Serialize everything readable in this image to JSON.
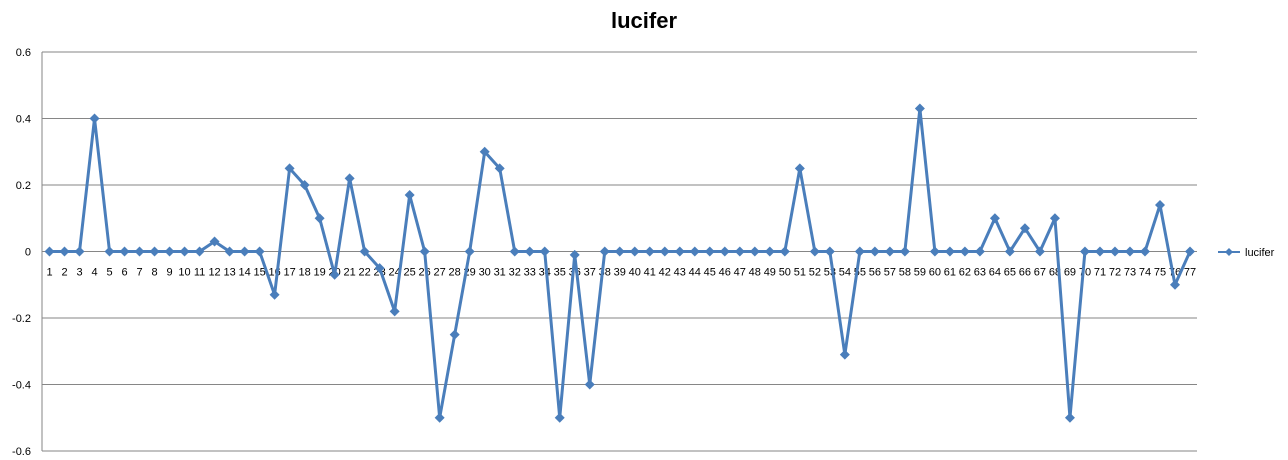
{
  "chart_data": {
    "type": "line",
    "title": "lucifer",
    "xlabel": "",
    "ylabel": "",
    "ylim": [
      -0.6,
      0.6
    ],
    "yticks": [
      "0.6",
      "0.4",
      "0.2",
      "0",
      "-0.2",
      "-0.4",
      "-0.6"
    ],
    "ytick_values": [
      0.6,
      0.4,
      0.2,
      0,
      -0.2,
      -0.4,
      -0.6
    ],
    "grid": true,
    "legend_position": "right",
    "categories": [
      "1",
      "2",
      "3",
      "4",
      "5",
      "6",
      "7",
      "8",
      "9",
      "10",
      "11",
      "12",
      "13",
      "14",
      "15",
      "16",
      "17",
      "18",
      "19",
      "20",
      "21",
      "22",
      "23",
      "24",
      "25",
      "26",
      "27",
      "28",
      "29",
      "30",
      "31",
      "32",
      "33",
      "34",
      "35",
      "36",
      "37",
      "38",
      "39",
      "40",
      "41",
      "42",
      "43",
      "44",
      "45",
      "46",
      "47",
      "48",
      "49",
      "50",
      "51",
      "52",
      "53",
      "54",
      "55",
      "56",
      "57",
      "58",
      "59",
      "60",
      "61",
      "62",
      "63",
      "64",
      "65",
      "66",
      "67",
      "68",
      "69",
      "70",
      "71",
      "72",
      "73",
      "74",
      "75",
      "76",
      "77"
    ],
    "series": [
      {
        "name": "lucifer",
        "color": "#4a7ebb",
        "values": [
          0,
          0,
          0,
          0.4,
          0,
          0,
          0,
          0,
          0,
          0,
          0,
          0.03,
          0,
          0,
          0,
          -0.13,
          0.25,
          0.2,
          0.1,
          -0.07,
          0.22,
          0,
          -0.05,
          -0.18,
          0.17,
          0,
          -0.5,
          -0.25,
          0,
          0.3,
          0.25,
          0,
          0,
          0,
          -0.5,
          -0.01,
          -0.4,
          0,
          0,
          0,
          0,
          0,
          0,
          0,
          0,
          0,
          0,
          0,
          0,
          0,
          0.25,
          0,
          0,
          -0.31,
          0,
          0,
          0,
          0,
          0.43,
          0,
          0,
          0,
          0,
          0.1,
          0,
          0.07,
          0,
          0.1,
          -0.5,
          0,
          0,
          0,
          0,
          0,
          0.14,
          -0.1,
          0
        ]
      }
    ]
  }
}
